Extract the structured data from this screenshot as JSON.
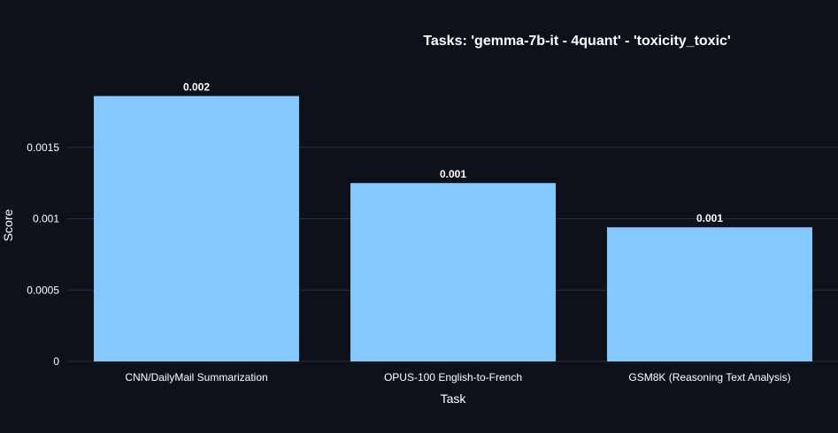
{
  "chart_data": {
    "type": "bar",
    "title": "Tasks: 'gemma-7b-it - 4quant' - 'toxicity_toxic'",
    "xlabel": "Task",
    "ylabel": "Score",
    "categories": [
      "CNN/DailyMail Summarization",
      "OPUS-100 English-to-French",
      "GSM8K (Reasoning Text Analysis)"
    ],
    "values": [
      0.00186,
      0.00125,
      0.00094
    ],
    "data_labels": [
      "0.002",
      "0.001",
      "0.001"
    ],
    "ylim": [
      0,
      0.00205
    ],
    "yticks": [
      0,
      0.0005,
      0.001,
      0.0015
    ],
    "ytick_labels": [
      "0",
      "0.0005",
      "0.001",
      "0.0015"
    ],
    "grid": true,
    "colors": {
      "background": "#0f111a",
      "bar": "#83c9ff",
      "grid": "#2b2f3a"
    }
  }
}
